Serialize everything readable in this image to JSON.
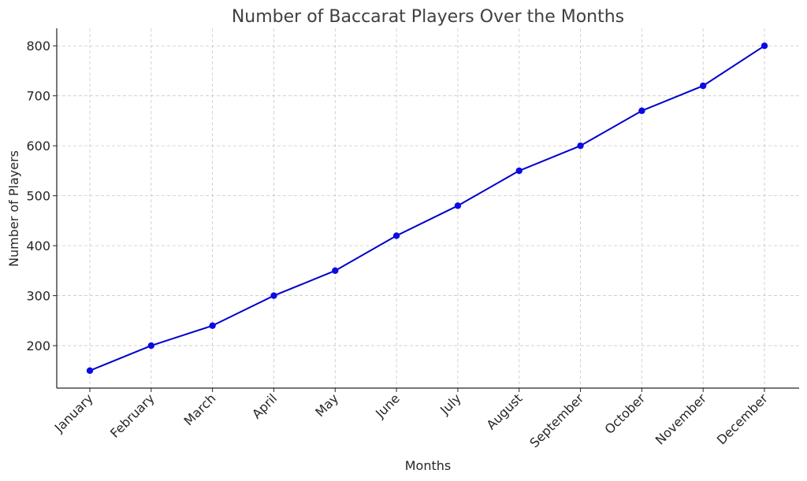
{
  "chart_data": {
    "type": "line",
    "title": "Number of Baccarat Players Over the Months",
    "xlabel": "Months",
    "ylabel": "Number of Players",
    "categories": [
      "January",
      "February",
      "March",
      "April",
      "May",
      "June",
      "July",
      "August",
      "September",
      "October",
      "November",
      "December"
    ],
    "series": [
      {
        "values": [
          150,
          200,
          240,
          300,
          350,
          420,
          480,
          550,
          600,
          670,
          720,
          800
        ]
      }
    ],
    "yticks": [
      200,
      300,
      400,
      500,
      600,
      700,
      800
    ],
    "ylim": [
      115,
      835
    ],
    "grid": true,
    "line_color": "#0000cc",
    "marker_color": "#0b0be6",
    "legend": "none"
  }
}
